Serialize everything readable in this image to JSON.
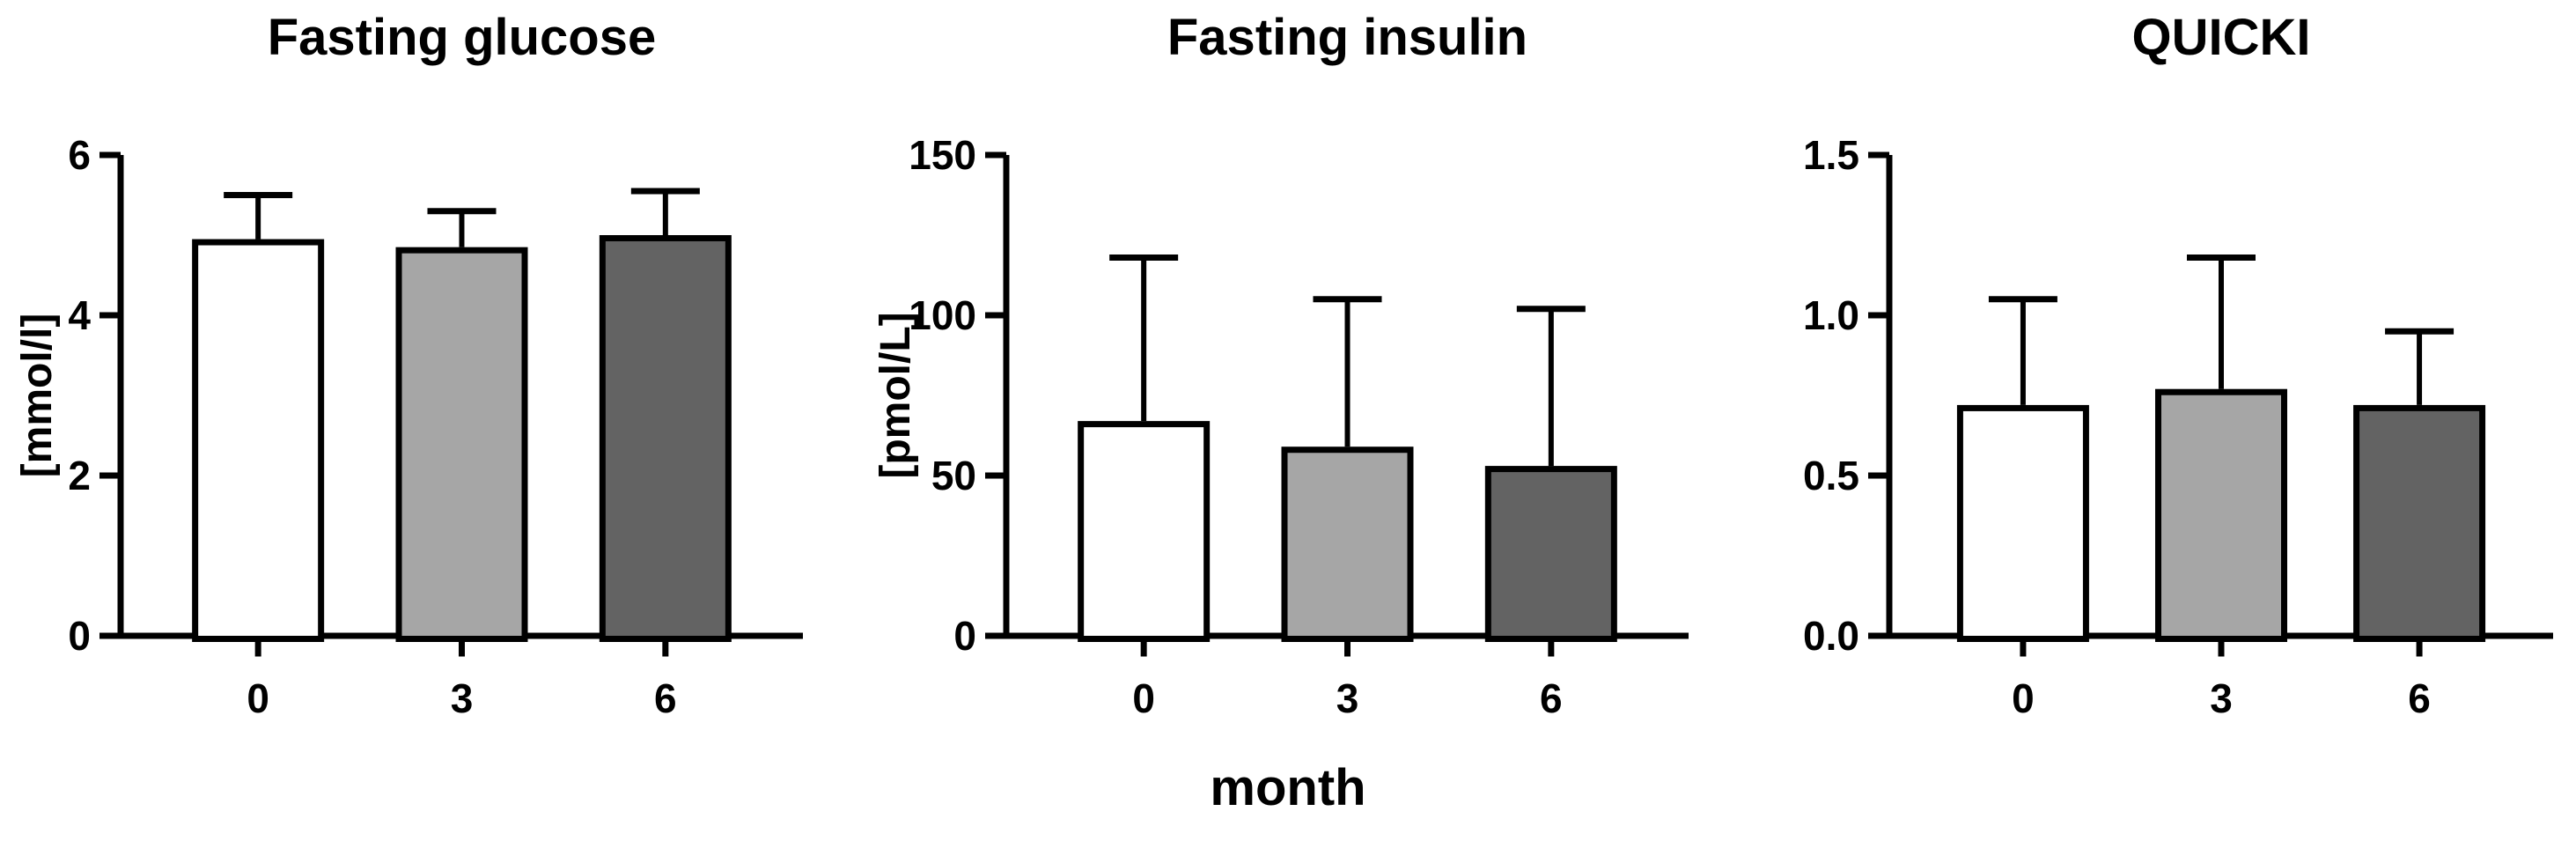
{
  "figure": {
    "background": "#ffffff",
    "text_color": "#000000",
    "axis_color": "#000000"
  },
  "xlabel": "month",
  "chart_data": [
    {
      "type": "bar",
      "title": "Fasting glucose",
      "ylabel": "[mmol/l]",
      "xlabel": "month",
      "categories": [
        "0",
        "3",
        "6"
      ],
      "values": [
        4.95,
        4.85,
        5.0
      ],
      "sd_upper": [
        0.55,
        0.45,
        0.55
      ],
      "error_tops": [
        5.5,
        5.3,
        5.55
      ],
      "ylim": [
        0,
        6
      ],
      "yticks": [
        "0",
        "2",
        "4",
        "6"
      ],
      "bar_colors": [
        "#FFFFFF",
        "#A6A6A6",
        "#636363"
      ],
      "bar_border_color": "#000000",
      "grid": false,
      "legend": false
    },
    {
      "type": "bar",
      "title": "Fasting insulin",
      "ylabel": "[pmol/L]",
      "xlabel": "month",
      "categories": [
        "0",
        "3",
        "6"
      ],
      "values": [
        67,
        59,
        53
      ],
      "sd_upper": [
        51,
        46,
        49
      ],
      "error_tops": [
        118,
        105,
        102
      ],
      "ylim": [
        0,
        150
      ],
      "yticks": [
        "0",
        "50",
        "100",
        "150"
      ],
      "bar_colors": [
        "#FFFFFF",
        "#A6A6A6",
        "#636363"
      ],
      "bar_border_color": "#000000",
      "grid": false,
      "legend": false
    },
    {
      "type": "bar",
      "title": "QUICKI",
      "ylabel": "",
      "xlabel": "month",
      "categories": [
        "0",
        "3",
        "6"
      ],
      "values": [
        0.72,
        0.77,
        0.72
      ],
      "sd_upper": [
        0.33,
        0.41,
        0.23
      ],
      "error_tops": [
        1.05,
        1.18,
        0.95
      ],
      "ylim": [
        0,
        1.5
      ],
      "yticks": [
        "0.0",
        "0.5",
        "1.0",
        "1.5"
      ],
      "bar_colors": [
        "#FFFFFF",
        "#A6A6A6",
        "#636363"
      ],
      "bar_border_color": "#000000",
      "grid": false,
      "legend": false
    }
  ]
}
